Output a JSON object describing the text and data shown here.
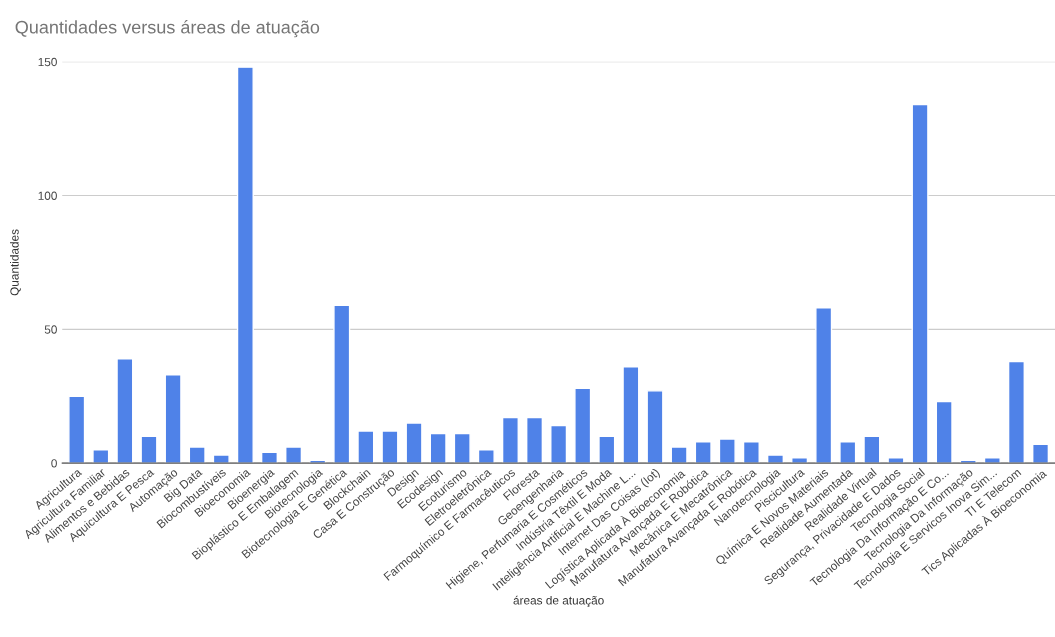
{
  "chart_data": {
    "type": "bar",
    "title": "Quantidades versus áreas de atuação",
    "xlabel": "áreas de atuação",
    "ylabel": "Quantidades",
    "categories": [
      "Agricultura",
      "Agricultura Familiar",
      "Alimentos e Bebidas",
      "Aquicultura E Pesca",
      "Automação",
      "Big Data",
      "Biocombustíveis",
      "Bioeconomia",
      "Bioenergia",
      "Bioplástico E Embalagem",
      "Biotecnologia",
      "Biotecnologia E Genética",
      "Blockchain",
      "Casa E Construção",
      "Design",
      "Ecodesign",
      "Ecoturismo",
      "Eletroeletrônica",
      "Farmoquímico E Farmacêuticos",
      "Floresta",
      "Geoengenharia",
      "Higiene, Perfumaria E Cosméticos",
      "Indústria Têxtil E Moda",
      "Inteligência Artificial E Machine L...",
      "Internet Das Coisas (Iot)",
      "Logística Aplicada À Bioeconomia",
      "Manufatura Avançada E Robótica",
      "Mecânica E Mecatrônica",
      "Manufatura Avançada E Robótica",
      "Nanotecnologia",
      "Piscicultura",
      "Química E Novos Materiais",
      "Realidade Aumentada",
      "Realidade Virtual",
      "Segurança, Privacidade E Dados",
      "Tecnologia Social",
      "Tecnologia Da Informação E Co...",
      "Tecnologia Da Informação",
      "Tecnologia E Servicos Inova Sim...",
      "TI E Telecom",
      "Tics Aplicadas À Bioeconomia"
    ],
    "values": [
      25,
      5,
      39,
      10,
      33,
      6,
      3,
      148,
      4,
      6,
      1,
      59,
      12,
      12,
      15,
      11,
      11,
      5,
      17,
      17,
      14,
      28,
      10,
      36,
      27,
      6,
      8,
      9,
      8,
      3,
      2,
      58,
      8,
      10,
      2,
      134,
      23,
      1,
      2,
      38,
      7
    ],
    "color": "#4f82e8",
    "ylim": [
      0,
      150
    ],
    "yticks": [
      0,
      50,
      100,
      150
    ],
    "grid": "y"
  }
}
